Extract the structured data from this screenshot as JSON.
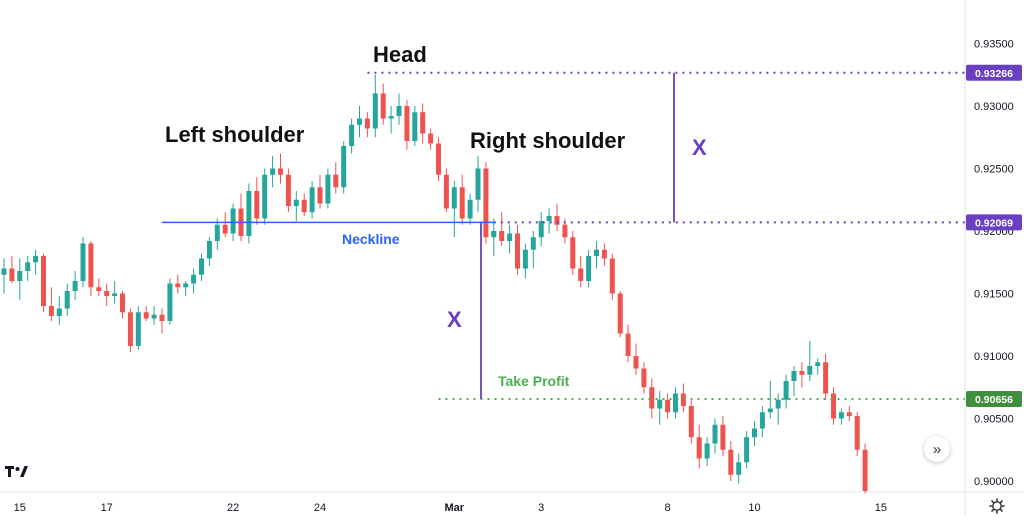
{
  "chart_data": {
    "type": "candlestick",
    "ylim": [
      0.8988,
      0.938
    ],
    "y_ticks": [
      "0.93500",
      "0.93000",
      "0.92500",
      "0.92000",
      "0.91500",
      "0.91000",
      "0.90500",
      "0.90000"
    ],
    "y_tick_values": [
      0.935,
      0.93,
      0.925,
      0.92,
      0.915,
      0.91,
      0.905,
      0.9
    ],
    "x_ticks": [
      {
        "label": "15",
        "index": 2,
        "bold": false
      },
      {
        "label": "17",
        "index": 13,
        "bold": false
      },
      {
        "label": "22",
        "index": 29,
        "bold": false
      },
      {
        "label": "24",
        "index": 40,
        "bold": false
      },
      {
        "label": "Mar",
        "index": 57,
        "bold": true
      },
      {
        "label": "3",
        "index": 68,
        "bold": false
      },
      {
        "label": "8",
        "index": 84,
        "bold": false
      },
      {
        "label": "10",
        "index": 95,
        "bold": false
      },
      {
        "label": "15",
        "index": 111,
        "bold": false
      }
    ],
    "candles": [
      [
        0.9165,
        0.9178,
        0.915,
        0.917
      ],
      [
        0.917,
        0.918,
        0.9158,
        0.916
      ],
      [
        0.916,
        0.9178,
        0.9145,
        0.9168
      ],
      [
        0.9168,
        0.918,
        0.916,
        0.9175
      ],
      [
        0.9175,
        0.9185,
        0.9165,
        0.918
      ],
      [
        0.918,
        0.9182,
        0.9135,
        0.914
      ],
      [
        0.914,
        0.9155,
        0.9128,
        0.9132
      ],
      [
        0.9132,
        0.9148,
        0.9125,
        0.9138
      ],
      [
        0.9138,
        0.9158,
        0.9132,
        0.9152
      ],
      [
        0.9152,
        0.9168,
        0.9145,
        0.916
      ],
      [
        0.916,
        0.9195,
        0.9155,
        0.919
      ],
      [
        0.919,
        0.9192,
        0.9148,
        0.9155
      ],
      [
        0.9155,
        0.9162,
        0.9148,
        0.9152
      ],
      [
        0.9152,
        0.9158,
        0.914,
        0.9148
      ],
      [
        0.9148,
        0.916,
        0.9142,
        0.915
      ],
      [
        0.915,
        0.9152,
        0.913,
        0.9135
      ],
      [
        0.9135,
        0.9138,
        0.9103,
        0.9108
      ],
      [
        0.9108,
        0.914,
        0.9105,
        0.9135
      ],
      [
        0.9135,
        0.914,
        0.9128,
        0.913
      ],
      [
        0.913,
        0.914,
        0.9125,
        0.9133
      ],
      [
        0.9133,
        0.9138,
        0.9118,
        0.9128
      ],
      [
        0.9128,
        0.9162,
        0.9125,
        0.9158
      ],
      [
        0.9158,
        0.9165,
        0.915,
        0.9155
      ],
      [
        0.9155,
        0.916,
        0.9148,
        0.9158
      ],
      [
        0.9158,
        0.917,
        0.915,
        0.9165
      ],
      [
        0.9165,
        0.9182,
        0.916,
        0.9178
      ],
      [
        0.9178,
        0.9195,
        0.9172,
        0.9192
      ],
      [
        0.9192,
        0.921,
        0.9185,
        0.9205
      ],
      [
        0.9205,
        0.9215,
        0.9195,
        0.9198
      ],
      [
        0.9198,
        0.9222,
        0.9192,
        0.9218
      ],
      [
        0.9218,
        0.923,
        0.9192,
        0.9196
      ],
      [
        0.9196,
        0.9238,
        0.919,
        0.9232
      ],
      [
        0.9232,
        0.9243,
        0.9205,
        0.921
      ],
      [
        0.921,
        0.925,
        0.9205,
        0.9245
      ],
      [
        0.9245,
        0.926,
        0.9235,
        0.925
      ],
      [
        0.925,
        0.9262,
        0.9238,
        0.9245
      ],
      [
        0.9245,
        0.925,
        0.9215,
        0.922
      ],
      [
        0.922,
        0.9232,
        0.9208,
        0.9225
      ],
      [
        0.9225,
        0.923,
        0.9212,
        0.9215
      ],
      [
        0.9215,
        0.924,
        0.921,
        0.9235
      ],
      [
        0.9235,
        0.9245,
        0.9218,
        0.9222
      ],
      [
        0.9222,
        0.925,
        0.9218,
        0.9245
      ],
      [
        0.9245,
        0.9255,
        0.923,
        0.9235
      ],
      [
        0.9235,
        0.9272,
        0.923,
        0.9268
      ],
      [
        0.9268,
        0.929,
        0.9262,
        0.9285
      ],
      [
        0.9285,
        0.93,
        0.9275,
        0.929
      ],
      [
        0.929,
        0.9295,
        0.9275,
        0.9282
      ],
      [
        0.9282,
        0.9325,
        0.9275,
        0.931
      ],
      [
        0.931,
        0.9318,
        0.9285,
        0.929
      ],
      [
        0.929,
        0.93,
        0.9278,
        0.9292
      ],
      [
        0.9292,
        0.931,
        0.9285,
        0.93
      ],
      [
        0.93,
        0.9305,
        0.9265,
        0.9272
      ],
      [
        0.9272,
        0.93,
        0.9268,
        0.9295
      ],
      [
        0.9295,
        0.9302,
        0.927,
        0.9278
      ],
      [
        0.9278,
        0.9282,
        0.9265,
        0.927
      ],
      [
        0.927,
        0.9275,
        0.924,
        0.9245
      ],
      [
        0.9245,
        0.925,
        0.9215,
        0.9218
      ],
      [
        0.9218,
        0.924,
        0.9195,
        0.9235
      ],
      [
        0.9235,
        0.9245,
        0.9205,
        0.921
      ],
      [
        0.921,
        0.923,
        0.9205,
        0.9225
      ],
      [
        0.9225,
        0.926,
        0.9215,
        0.925
      ],
      [
        0.925,
        0.9255,
        0.919,
        0.9195
      ],
      [
        0.9195,
        0.921,
        0.918,
        0.92
      ],
      [
        0.92,
        0.9215,
        0.9188,
        0.9192
      ],
      [
        0.9192,
        0.9205,
        0.9182,
        0.9198
      ],
      [
        0.9198,
        0.9205,
        0.9165,
        0.917
      ],
      [
        0.917,
        0.919,
        0.9162,
        0.9185
      ],
      [
        0.9185,
        0.92,
        0.917,
        0.9195
      ],
      [
        0.9195,
        0.9215,
        0.9188,
        0.9208
      ],
      [
        0.9208,
        0.9218,
        0.9198,
        0.9212
      ],
      [
        0.9212,
        0.9222,
        0.92,
        0.9205
      ],
      [
        0.9205,
        0.921,
        0.919,
        0.9195
      ],
      [
        0.9195,
        0.92,
        0.9165,
        0.917
      ],
      [
        0.917,
        0.918,
        0.9155,
        0.916
      ],
      [
        0.916,
        0.9185,
        0.9155,
        0.918
      ],
      [
        0.918,
        0.9192,
        0.917,
        0.9185
      ],
      [
        0.9185,
        0.919,
        0.9172,
        0.9178
      ],
      [
        0.9178,
        0.9182,
        0.9145,
        0.915
      ],
      [
        0.915,
        0.9152,
        0.9115,
        0.9118
      ],
      [
        0.9118,
        0.9125,
        0.9095,
        0.91
      ],
      [
        0.91,
        0.911,
        0.9085,
        0.909
      ],
      [
        0.909,
        0.9095,
        0.907,
        0.9075
      ],
      [
        0.9075,
        0.9082,
        0.905,
        0.9058
      ],
      [
        0.9058,
        0.9072,
        0.9045,
        0.9065
      ],
      [
        0.9065,
        0.907,
        0.905,
        0.9055
      ],
      [
        0.9055,
        0.9075,
        0.905,
        0.907
      ],
      [
        0.907,
        0.9078,
        0.9055,
        0.906
      ],
      [
        0.906,
        0.9065,
        0.903,
        0.9035
      ],
      [
        0.9035,
        0.9045,
        0.901,
        0.9018
      ],
      [
        0.9018,
        0.9035,
        0.9012,
        0.903
      ],
      [
        0.903,
        0.905,
        0.9022,
        0.9045
      ],
      [
        0.9045,
        0.9052,
        0.902,
        0.9025
      ],
      [
        0.9025,
        0.9032,
        0.9,
        0.9005
      ],
      [
        0.9005,
        0.9022,
        0.8998,
        0.9015
      ],
      [
        0.9015,
        0.904,
        0.901,
        0.9035
      ],
      [
        0.9035,
        0.9048,
        0.9028,
        0.9042
      ],
      [
        0.9042,
        0.906,
        0.9035,
        0.9055
      ],
      [
        0.9055,
        0.908,
        0.905,
        0.9058
      ],
      [
        0.9058,
        0.907,
        0.9045,
        0.9065
      ],
      [
        0.9065,
        0.9085,
        0.9058,
        0.908
      ],
      [
        0.908,
        0.9092,
        0.9068,
        0.9088
      ],
      [
        0.9088,
        0.9095,
        0.9075,
        0.9085
      ],
      [
        0.9085,
        0.9112,
        0.908,
        0.9092
      ],
      [
        0.9092,
        0.9098,
        0.9085,
        0.9095
      ],
      [
        0.9095,
        0.9102,
        0.9065,
        0.907
      ],
      [
        0.907,
        0.9075,
        0.9045,
        0.905
      ],
      [
        0.905,
        0.9058,
        0.9045,
        0.9055
      ],
      [
        0.9055,
        0.906,
        0.9048,
        0.9052
      ],
      [
        0.9052,
        0.9055,
        0.902,
        0.9025
      ],
      [
        0.9025,
        0.903,
        0.899,
        0.8992
      ]
    ],
    "neckline": {
      "label": "Neckline",
      "value": 0.92069,
      "from_index": 20,
      "to_index": 62
    },
    "head_level": {
      "value": 0.93266,
      "from_index": 46
    },
    "levels": [
      {
        "label": "0.93266",
        "value": 0.93266,
        "color": "#6a3fc1"
      },
      {
        "label": "0.92069",
        "value": 0.92069,
        "color": "#6a3fc1"
      },
      {
        "label": "0.90656",
        "value": 0.90656,
        "color": "#3f8f3f"
      }
    ],
    "take_profit": {
      "label": "Take Profit",
      "value": 0.90656,
      "from_index": 55
    },
    "annotations": {
      "head": "Head",
      "left_shoulder": "Left shoulder",
      "right_shoulder": "Right shoulder",
      "x_upper": "X",
      "x_lower": "X"
    },
    "colors": {
      "up": "#26a69a",
      "down": "#ef5350",
      "neckline": "#2962ff",
      "measure": "#6a3fc1",
      "take_profit": "#4caf50",
      "level_tag_purple": "#6a3fc1",
      "level_tag_green": "#3f8f3f"
    }
  },
  "ui": {
    "scroll_icon": "chevrons-right-icon",
    "settings_icon": "gear-icon",
    "logo_icon": "tradingview-logo"
  }
}
